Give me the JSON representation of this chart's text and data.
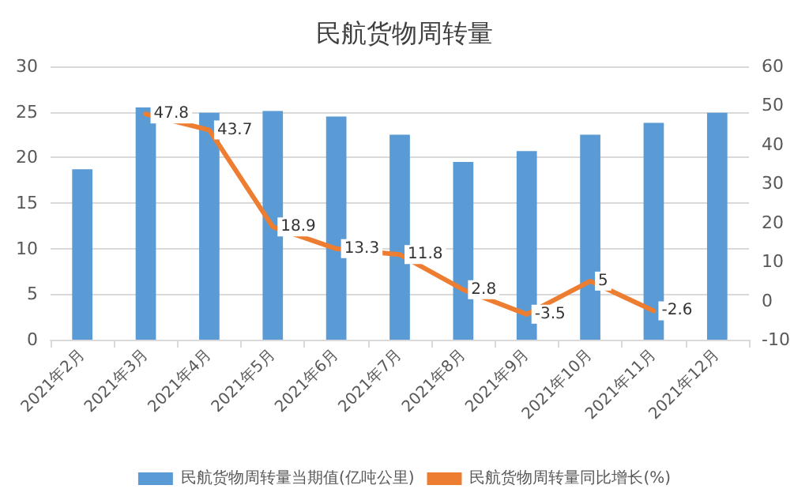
{
  "chart_data": {
    "type": "bar",
    "title": "民航货物周转量",
    "categories": [
      "2021年2月",
      "2021年3月",
      "2021年4月",
      "2021年5月",
      "2021年6月",
      "2021年7月",
      "2021年8月",
      "2021年9月",
      "2021年10月",
      "2021年11月",
      "2021年12月"
    ],
    "series": [
      {
        "name": "民航货物周转量当期值(亿吨公里)",
        "color": "#5b9bd5",
        "values": [
          18.7,
          25.5,
          24.9,
          25.1,
          24.5,
          22.5,
          19.5,
          20.7,
          22.5,
          23.8,
          24.9
        ]
      },
      {
        "name": "民航货物周转量同比增长(%)",
        "type": "line",
        "axis": "y2",
        "color": "#ed7d31",
        "values": [
          null,
          47.8,
          43.7,
          18.9,
          13.3,
          11.8,
          2.8,
          -3.5,
          5,
          -2.6,
          null
        ],
        "value_labels": [
          null,
          "47.8",
          "43.7",
          "18.9",
          "13.3",
          "11.8",
          "2.8",
          "-3.5",
          "5",
          "-2.6",
          null
        ]
      }
    ],
    "ylim": [
      0,
      30
    ],
    "yticks": [
      0,
      5,
      10,
      15,
      20,
      25,
      30
    ],
    "y2lim": [
      -10,
      60
    ],
    "y2ticks": [
      -10,
      0,
      10,
      20,
      30,
      40,
      50,
      60
    ],
    "grid": "y",
    "legend": "bottom",
    "marker": "none",
    "line_style": "solid"
  }
}
